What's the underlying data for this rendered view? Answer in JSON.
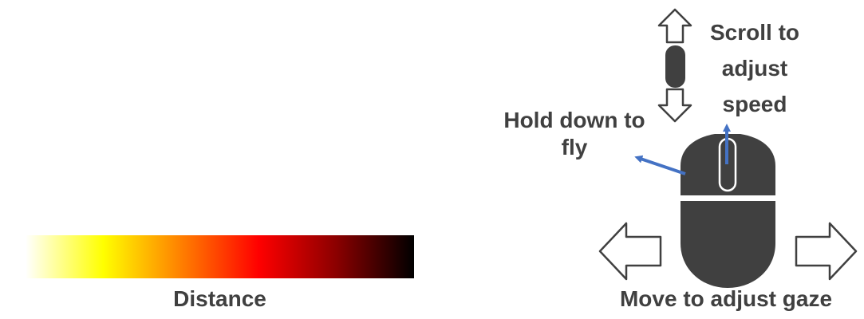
{
  "distance_legend": {
    "label": "Distance",
    "gradient_colors": [
      "#ffffff",
      "#ffff00",
      "#ff8000",
      "#ff0000",
      "#8b0000",
      "#000000"
    ]
  },
  "mouse_controls": {
    "hold_label": "Hold down to fly",
    "scroll_label": "Scroll to adjust speed",
    "move_label": "Move to adjust gaze",
    "icon_color": "#404040",
    "pointer_color": "#4472c4"
  }
}
